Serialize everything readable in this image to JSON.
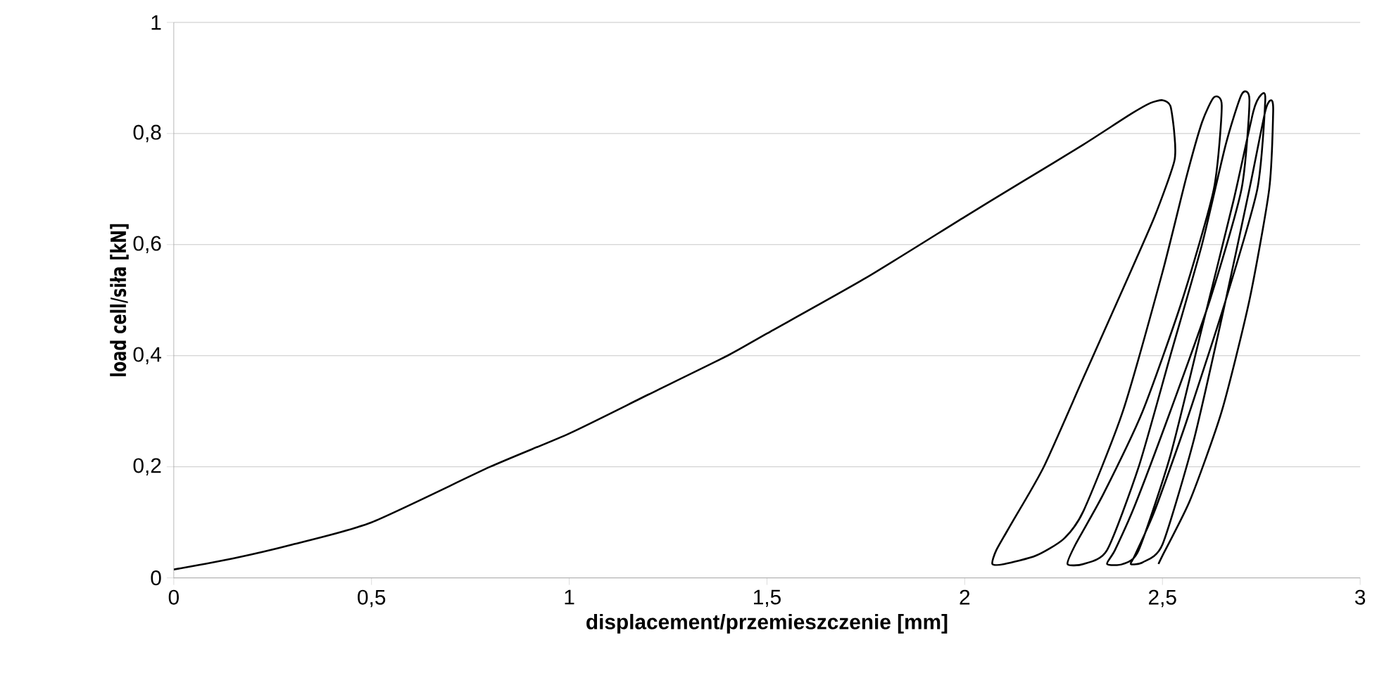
{
  "chart_data": {
    "type": "line",
    "xlabel": "displacement/przemieszczenie [mm]",
    "ylabel": "load cell/siła [kN]",
    "xlim": [
      0,
      3
    ],
    "ylim": [
      0,
      1
    ],
    "xticks": [
      {
        "value": 0,
        "label": "0"
      },
      {
        "value": 0.5,
        "label": "0,5"
      },
      {
        "value": 1,
        "label": "1"
      },
      {
        "value": 1.5,
        "label": "1,5"
      },
      {
        "value": 2,
        "label": "2"
      },
      {
        "value": 2.5,
        "label": "2,5"
      },
      {
        "value": 3,
        "label": "3"
      }
    ],
    "yticks": [
      {
        "value": 0,
        "label": "0"
      },
      {
        "value": 0.2,
        "label": "0,2"
      },
      {
        "value": 0.4,
        "label": "0,4"
      },
      {
        "value": 0.6,
        "label": "0,6"
      },
      {
        "value": 0.8,
        "label": "0,8"
      },
      {
        "value": 1,
        "label": "1"
      }
    ],
    "grid": "y",
    "marker": "none",
    "line_style": "solid",
    "series": [
      {
        "color": "#000000",
        "x": [
          0,
          0.15,
          0.3,
          0.5,
          0.8,
          1.0,
          1.2,
          1.4,
          1.5,
          1.75,
          2.0,
          2.15,
          2.3,
          2.42,
          2.47,
          2.5,
          2.52,
          2.53,
          2.53,
          2.48,
          2.4,
          2.3,
          2.2,
          2.12,
          2.08,
          2.07,
          2.1,
          2.18,
          2.25,
          2.3,
          2.4,
          2.5,
          2.56,
          2.6,
          2.63,
          2.65,
          2.63,
          2.55,
          2.45,
          2.35,
          2.28,
          2.26,
          2.3,
          2.36,
          2.44,
          2.52,
          2.6,
          2.66,
          2.7,
          2.72,
          2.7,
          2.62,
          2.52,
          2.43,
          2.38,
          2.36,
          2.4,
          2.44,
          2.52,
          2.6,
          2.68,
          2.73,
          2.75,
          2.76,
          2.74,
          2.66,
          2.56,
          2.48,
          2.43,
          2.42,
          2.45,
          2.5,
          2.58,
          2.66,
          2.72,
          2.76,
          2.775,
          2.78,
          2.77,
          2.72,
          2.65,
          2.57,
          2.5,
          2.49
        ],
        "values": [
          0.015,
          0.035,
          0.06,
          0.1,
          0.2,
          0.26,
          0.33,
          0.4,
          0.44,
          0.54,
          0.65,
          0.715,
          0.78,
          0.835,
          0.855,
          0.86,
          0.85,
          0.8,
          0.75,
          0.65,
          0.52,
          0.36,
          0.2,
          0.1,
          0.05,
          0.025,
          0.025,
          0.04,
          0.07,
          0.12,
          0.3,
          0.55,
          0.72,
          0.82,
          0.865,
          0.85,
          0.7,
          0.5,
          0.3,
          0.15,
          0.06,
          0.025,
          0.025,
          0.05,
          0.2,
          0.4,
          0.6,
          0.78,
          0.87,
          0.86,
          0.7,
          0.5,
          0.3,
          0.13,
          0.05,
          0.025,
          0.025,
          0.05,
          0.22,
          0.45,
          0.68,
          0.84,
          0.87,
          0.86,
          0.7,
          0.5,
          0.28,
          0.12,
          0.04,
          0.025,
          0.028,
          0.06,
          0.25,
          0.5,
          0.7,
          0.84,
          0.86,
          0.84,
          0.7,
          0.5,
          0.3,
          0.14,
          0.04,
          0.025
        ]
      }
    ]
  }
}
